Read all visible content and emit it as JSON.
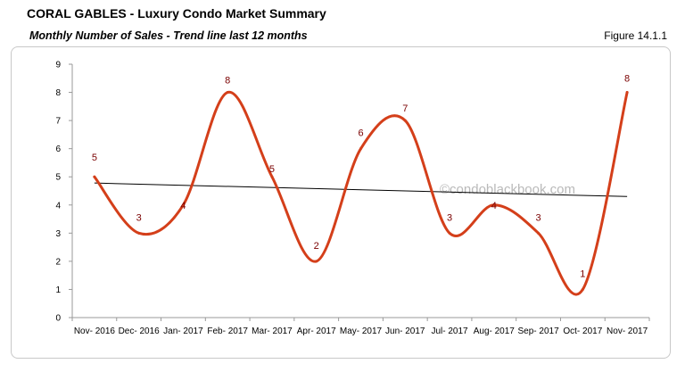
{
  "header": {
    "title": "CORAL GABLES - Luxury Condo Market Summary",
    "subtitle": "Monthly Number of Sales - Trend line last 12 months",
    "figure": "Figure 14.1.1"
  },
  "watermark": "©condoblackbook.com",
  "colors": {
    "series": "#d43f1a",
    "trend": "#000000",
    "labels": "#7a0000",
    "axis": "#999999"
  },
  "chart_data": {
    "type": "line",
    "categories": [
      "Nov- 2016",
      "Dec- 2016",
      "Jan- 2017",
      "Feb- 2017",
      "Mar- 2017",
      "Apr- 2017",
      "May- 2017",
      "Jun- 2017",
      "Jul- 2017",
      "Aug- 2017",
      "Sep- 2017",
      "Oct- 2017",
      "Nov- 2017"
    ],
    "series": [
      {
        "values": [
          5,
          3,
          4,
          8,
          5,
          2,
          6,
          7,
          3,
          4,
          3,
          1,
          8
        ],
        "smooth": true
      }
    ],
    "trendline": {
      "type": "linear",
      "start": 4.78,
      "end": 4.3
    },
    "ylim": [
      0,
      9
    ],
    "yticks": [
      0,
      1,
      2,
      3,
      4,
      5,
      6,
      7,
      8,
      9
    ],
    "data_labels": true,
    "grid": false
  }
}
